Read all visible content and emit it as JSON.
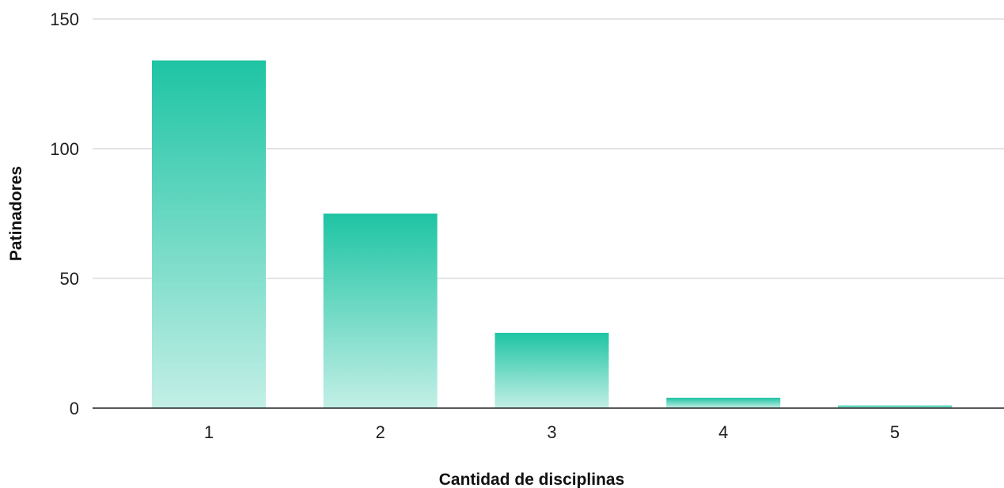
{
  "chart_data": {
    "type": "bar",
    "categories": [
      "1",
      "2",
      "3",
      "4",
      "5"
    ],
    "values": [
      134,
      75,
      29,
      4,
      1
    ],
    "xlabel": "Cantidad de disciplinas",
    "ylabel": "Patinadores",
    "ylim": [
      0,
      150
    ],
    "yticks": [
      "0",
      "50",
      "100",
      "150"
    ],
    "grid": true,
    "legend": "none",
    "colors": {
      "bar_top": "#1ec4a4",
      "bar_bottom": "#c3efe6",
      "grid": "#c8c8c8",
      "axis": "#222222"
    }
  }
}
